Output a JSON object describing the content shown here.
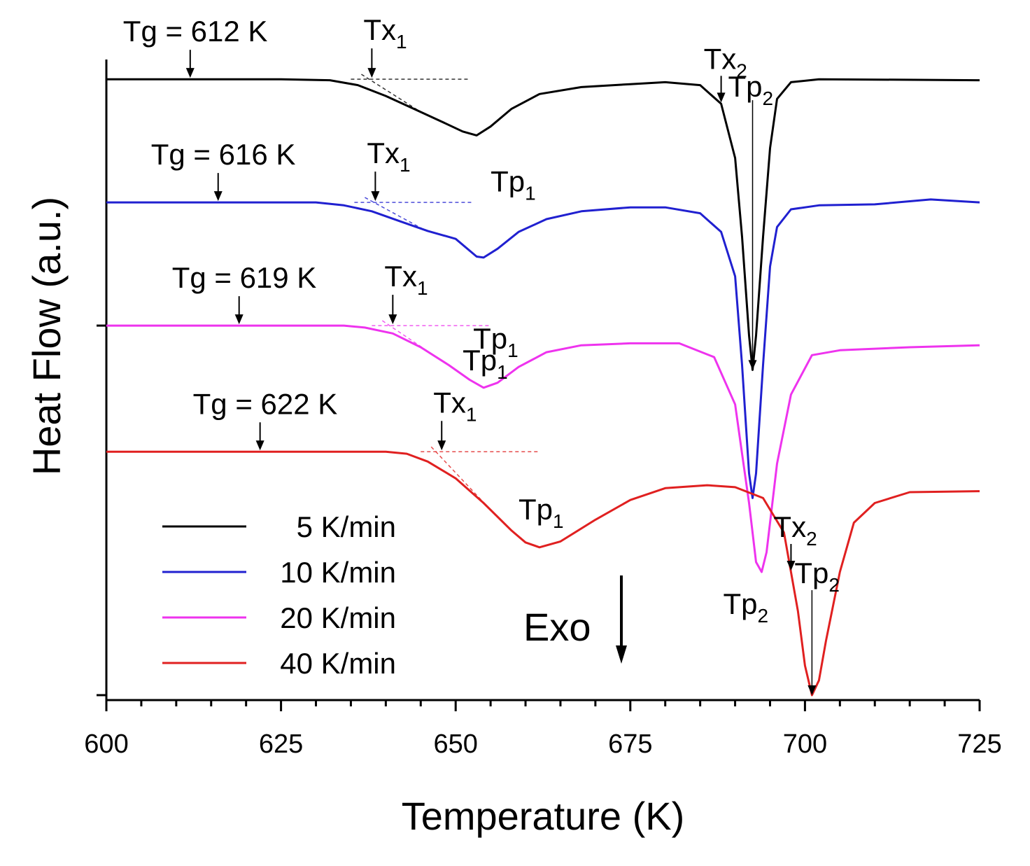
{
  "chart_data": {
    "type": "line",
    "title": "",
    "xlabel": "Temperature (K)",
    "ylabel": "Heat Flow (a.u.)",
    "xlim": [
      600,
      725
    ],
    "xticks": [
      600,
      625,
      650,
      675,
      700,
      725
    ],
    "ylim": [
      -6.3,
      0.2
    ],
    "grid": false,
    "legend_position": "lower-left",
    "exo_label": "Exo",
    "series": [
      {
        "name": "5 K/min",
        "color": "#000000",
        "baseline": 0,
        "points": [
          [
            600,
            0
          ],
          [
            625,
            0
          ],
          [
            632,
            -0.01
          ],
          [
            636,
            -0.06
          ],
          [
            640,
            -0.17
          ],
          [
            644,
            -0.3
          ],
          [
            648,
            -0.43
          ],
          [
            651,
            -0.53
          ],
          [
            653,
            -0.57
          ],
          [
            655,
            -0.48
          ],
          [
            658,
            -0.3
          ],
          [
            662,
            -0.15
          ],
          [
            668,
            -0.08
          ],
          [
            675,
            -0.05
          ],
          [
            680,
            -0.03
          ],
          [
            685,
            -0.06
          ],
          [
            688,
            -0.25
          ],
          [
            690,
            -0.8
          ],
          [
            691,
            -1.6
          ],
          [
            692,
            -2.6
          ],
          [
            692.5,
            -2.95
          ],
          [
            693,
            -2.6
          ],
          [
            694,
            -1.6
          ],
          [
            695,
            -0.7
          ],
          [
            696,
            -0.2
          ],
          [
            698,
            -0.03
          ],
          [
            702,
            0
          ],
          [
            725,
            -0.01
          ]
        ]
      },
      {
        "name": "10 K/min",
        "color": "#2020d0",
        "baseline": -1.25,
        "points": [
          [
            600,
            -1.25
          ],
          [
            630,
            -1.25
          ],
          [
            634,
            -1.28
          ],
          [
            638,
            -1.34
          ],
          [
            642,
            -1.44
          ],
          [
            646,
            -1.54
          ],
          [
            650,
            -1.62
          ],
          [
            653,
            -1.8
          ],
          [
            654,
            -1.81
          ],
          [
            656,
            -1.72
          ],
          [
            659,
            -1.55
          ],
          [
            663,
            -1.42
          ],
          [
            668,
            -1.34
          ],
          [
            675,
            -1.3
          ],
          [
            680,
            -1.3
          ],
          [
            685,
            -1.36
          ],
          [
            688,
            -1.55
          ],
          [
            690,
            -2.0
          ],
          [
            691,
            -2.9
          ],
          [
            692,
            -4.0
          ],
          [
            692.5,
            -4.25
          ],
          [
            693,
            -4.0
          ],
          [
            694,
            -2.9
          ],
          [
            695,
            -1.9
          ],
          [
            696,
            -1.5
          ],
          [
            698,
            -1.32
          ],
          [
            702,
            -1.28
          ],
          [
            710,
            -1.27
          ],
          [
            718,
            -1.22
          ],
          [
            725,
            -1.25
          ]
        ]
      },
      {
        "name": "20 K/min",
        "color": "#ee33ee",
        "baseline": -2.5,
        "points": [
          [
            600,
            -2.5
          ],
          [
            634,
            -2.5
          ],
          [
            637,
            -2.52
          ],
          [
            641,
            -2.58
          ],
          [
            645,
            -2.72
          ],
          [
            649,
            -2.9
          ],
          [
            652,
            -3.05
          ],
          [
            654,
            -3.13
          ],
          [
            656,
            -3.08
          ],
          [
            659,
            -2.92
          ],
          [
            663,
            -2.77
          ],
          [
            668,
            -2.7
          ],
          [
            675,
            -2.68
          ],
          [
            682,
            -2.68
          ],
          [
            687,
            -2.82
          ],
          [
            690,
            -3.3
          ],
          [
            691,
            -3.8
          ],
          [
            692,
            -4.3
          ],
          [
            693,
            -4.9
          ],
          [
            693.8,
            -5.0
          ],
          [
            694.5,
            -4.8
          ],
          [
            696,
            -3.9
          ],
          [
            698,
            -3.2
          ],
          [
            701,
            -2.8
          ],
          [
            705,
            -2.75
          ],
          [
            715,
            -2.72
          ],
          [
            725,
            -2.7
          ]
        ]
      },
      {
        "name": "40 K/min",
        "color": "#e02020",
        "baseline": -3.78,
        "points": [
          [
            600,
            -3.78
          ],
          [
            640,
            -3.78
          ],
          [
            643,
            -3.8
          ],
          [
            646,
            -3.88
          ],
          [
            650,
            -4.05
          ],
          [
            654,
            -4.3
          ],
          [
            658,
            -4.58
          ],
          [
            660,
            -4.7
          ],
          [
            662,
            -4.75
          ],
          [
            665,
            -4.69
          ],
          [
            670,
            -4.47
          ],
          [
            675,
            -4.27
          ],
          [
            680,
            -4.15
          ],
          [
            686,
            -4.12
          ],
          [
            690,
            -4.14
          ],
          [
            694,
            -4.25
          ],
          [
            697,
            -4.6
          ],
          [
            699,
            -5.4
          ],
          [
            700,
            -5.95
          ],
          [
            701,
            -6.25
          ],
          [
            702,
            -6.1
          ],
          [
            703,
            -5.7
          ],
          [
            705,
            -5.0
          ],
          [
            707,
            -4.5
          ],
          [
            710,
            -4.3
          ],
          [
            715,
            -4.19
          ],
          [
            725,
            -4.18
          ]
        ]
      }
    ],
    "axis_ticks_y": [
      -2.5,
      -6.25
    ],
    "annotations": [
      {
        "label": "Tg = 612 K",
        "series": "5 K/min",
        "x": 612
      },
      {
        "label": "Tg = 616 K",
        "series": "10 K/min",
        "x": 616
      },
      {
        "label": "Tg = 619 K",
        "series": "20 K/min",
        "x": 619
      },
      {
        "label": "Tg = 622 K",
        "series": "40 K/min",
        "x": 622
      },
      {
        "label": "Tx",
        "sub": "1",
        "series": "5 K/min",
        "x": 638
      },
      {
        "label": "Tx",
        "sub": "1",
        "series": "10 K/min",
        "x": 638.5
      },
      {
        "label": "Tx",
        "sub": "1",
        "series": "20 K/min",
        "x": 641
      },
      {
        "label": "Tx",
        "sub": "1",
        "series": "40 K/min",
        "x": 648
      },
      {
        "label": "Tp",
        "sub": "1",
        "series": "5 K/min",
        "x": 653
      },
      {
        "label": "Tp",
        "sub": "1",
        "series": "10 K/min",
        "x": 654
      },
      {
        "label": "Tp",
        "sub": "1",
        "series": "20 K/min",
        "x": 654
      },
      {
        "label": "Tp",
        "sub": "1",
        "series": "40 K/min",
        "x": 662
      },
      {
        "label": "Tx",
        "sub": "2",
        "series": "5 K/min",
        "x": 688
      },
      {
        "label": "Tp",
        "sub": "2",
        "series": "5 K/min",
        "x": 692.5
      },
      {
        "label": "Tp",
        "sub": "2",
        "series": "20 K/min",
        "x": 693.8
      },
      {
        "label": "Tx",
        "sub": "2",
        "series": "40 K/min",
        "x": 698
      },
      {
        "label": "Tp",
        "sub": "2",
        "series": "40 K/min",
        "x": 701
      }
    ]
  }
}
